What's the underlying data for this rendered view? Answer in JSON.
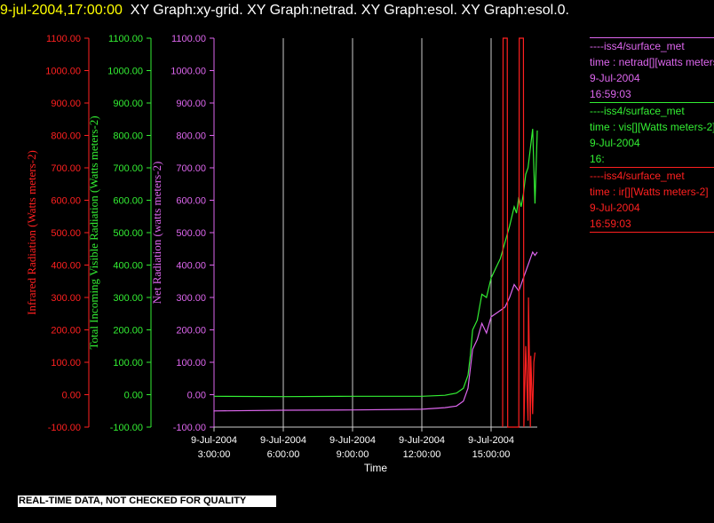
{
  "header": {
    "timestamp": "9-jul-2004,17:00:00",
    "graphs": "XY Graph:xy-grid.  XY Graph:netrad.  XY Graph:esol.  XY Graph:esol.0."
  },
  "notice": "REAL-TIME DATA, NOT CHECKED FOR QUALITY",
  "colors": {
    "background": "#000000",
    "infrared": "#ff2020",
    "visible": "#33ee33",
    "net": "#dd66ee",
    "grid": "#cccccc"
  },
  "legend": [
    {
      "line1": "----iss4/surface_met",
      "line2": "time : netrad[][watts meters-2]",
      "line3": "9-Jul-2004",
      "line4": "16:59:03",
      "color": "#dd66ee"
    },
    {
      "line1": "----iss4/surface_met",
      "line2": "time : vis[][Watts meters-2]",
      "line3": "9-Jul-2004",
      "line4": "16:",
      "color": "#33ee33"
    },
    {
      "line1": "----iss4/surface_met",
      "line2": "time : ir[][Watts meters-2]",
      "line3": "9-Jul-2004",
      "line4": "16:59:03",
      "color": "#ff2020"
    }
  ],
  "chart_data": {
    "type": "line",
    "xlabel": "Time",
    "x_ticks": [
      {
        "date": "9-Jul-2004",
        "time": "3:00:00",
        "hour": 3
      },
      {
        "date": "9-Jul-2004",
        "time": "6:00:00",
        "hour": 6
      },
      {
        "date": "9-Jul-2004",
        "time": "9:00:00",
        "hour": 9
      },
      {
        "date": "9-Jul-2004",
        "time": "12:00:00",
        "hour": 12
      },
      {
        "date": "9-Jul-2004",
        "time": "15:00:00",
        "hour": 15
      }
    ],
    "xlim": [
      3,
      17
    ],
    "ylim": [
      -100,
      1100
    ],
    "y_ticks": [
      "-100.00",
      "0.00",
      "100.00",
      "200.00",
      "300.00",
      "400.00",
      "500.00",
      "600.00",
      "700.00",
      "800.00",
      "900.00",
      "1000.00",
      "1100.00"
    ],
    "axes": [
      {
        "key": "infrared",
        "label": "Infrared Radiation (Watts meters-2)",
        "color": "#ff2020"
      },
      {
        "key": "visible",
        "label": "Total Incoming Visible Radiation (Watts meters-2)",
        "color": "#33ee33"
      },
      {
        "key": "net",
        "label": "Net Radiation (watts meters-2)",
        "color": "#dd66ee"
      }
    ],
    "series": [
      {
        "key": "visible",
        "color": "#33ee33",
        "x": [
          0.5,
          3,
          6,
          9,
          12,
          13,
          13.5,
          13.8,
          14.0,
          14.1,
          14.2,
          14.4,
          14.6,
          14.8,
          15.0,
          15.2,
          15.4,
          15.6,
          15.8,
          16.0,
          16.1,
          16.2,
          16.3,
          16.4,
          16.5,
          16.6,
          16.7,
          16.8,
          16.9,
          17.0
        ],
        "y": [
          -5,
          -5,
          -6,
          -5,
          -5,
          -2,
          5,
          20,
          60,
          120,
          200,
          230,
          310,
          300,
          360,
          390,
          420,
          470,
          520,
          580,
          560,
          610,
          580,
          620,
          680,
          700,
          760,
          820,
          590,
          815
        ]
      },
      {
        "key": "net",
        "color": "#dd66ee",
        "x": [
          0.5,
          3,
          6,
          9,
          12,
          13,
          13.5,
          13.8,
          14.0,
          14.2,
          14.4,
          14.6,
          14.8,
          15.0,
          15.2,
          15.4,
          15.6,
          15.8,
          16.0,
          16.2,
          16.4,
          16.6,
          16.7,
          16.8,
          16.9,
          17.0
        ],
        "y": [
          -52,
          -50,
          -48,
          -47,
          -45,
          -40,
          -35,
          -20,
          20,
          140,
          170,
          220,
          190,
          240,
          250,
          260,
          270,
          300,
          340,
          320,
          360,
          400,
          420,
          440,
          430,
          440
        ]
      },
      {
        "key": "infrared",
        "color": "#ff2020",
        "x": [
          15.5,
          15.52,
          15.7,
          15.72,
          16.2,
          16.22,
          16.4,
          16.42,
          16.5,
          16.6,
          16.62,
          16.7,
          16.72,
          16.8,
          16.85,
          16.9
        ],
        "y": [
          -100,
          1100,
          1100,
          -100,
          -100,
          1100,
          1100,
          -100,
          150,
          -80,
          300,
          -100,
          120,
          -60,
          100,
          130
        ]
      }
    ]
  }
}
